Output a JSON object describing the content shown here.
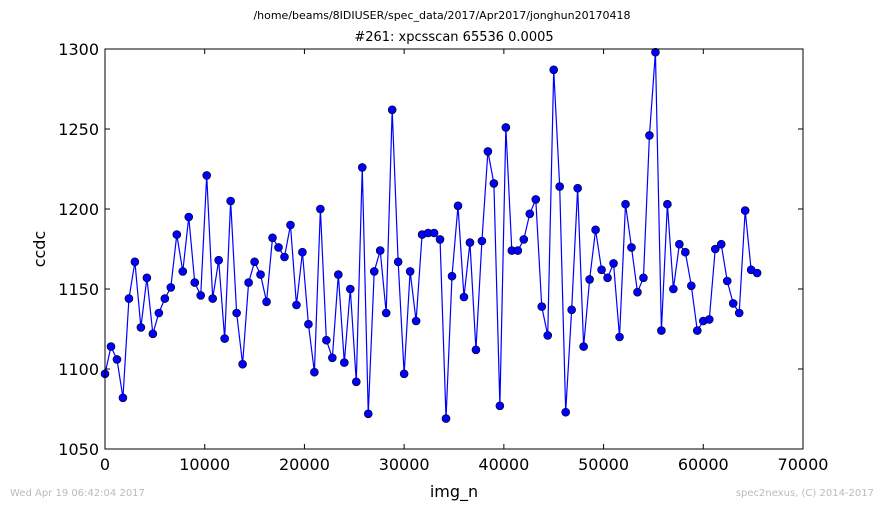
{
  "header": {
    "path": "/home/beams/8IDIUSER/spec_data/2017/Apr2017/jonghun20170418"
  },
  "footer": {
    "timestamp": "Wed Apr 19 06:42:04 2017",
    "credit": "spec2nexus, (C) 2014-2017"
  },
  "colors": {
    "line": "#0000ff",
    "marker": "#0000ff",
    "axes": "#000000"
  },
  "chart_data": {
    "type": "line",
    "title": "#261: xpcsscan 65536 0.0005",
    "xlabel": "img_n",
    "ylabel": "ccdc",
    "xlim": [
      0,
      70000
    ],
    "ylim": [
      1050,
      1300
    ],
    "xticks": [
      0,
      10000,
      20000,
      30000,
      40000,
      50000,
      60000,
      70000
    ],
    "xtick_labels": [
      "0",
      "10000",
      "20000",
      "30000",
      "40000",
      "50000",
      "60000",
      "70000"
    ],
    "yticks": [
      1050,
      1100,
      1150,
      1200,
      1250,
      1300
    ],
    "ytick_labels": [
      "1050",
      "1100",
      "1150",
      "1200",
      "1250",
      "1300"
    ],
    "grid": false,
    "legend": "none",
    "series": [
      {
        "x": [
          0,
          600,
          1200,
          1800,
          2400,
          3000,
          3600,
          4200,
          4800,
          5400,
          6000,
          6600,
          7200,
          7800,
          8400,
          9000,
          9600,
          10200,
          10800,
          11400,
          12000,
          12600,
          13200,
          13800,
          14400,
          15000,
          15600,
          16200,
          16800,
          17400,
          18000,
          18600,
          19200,
          19800,
          20400,
          21000,
          21600,
          22200,
          22800,
          23400,
          24000,
          24600,
          25200,
          25800,
          26400,
          27000,
          27600,
          28200,
          28800,
          29400,
          30000,
          30600,
          31200,
          31800,
          32400,
          33000,
          33600,
          34200,
          34800,
          35400,
          36000,
          36600,
          37200,
          37800,
          38400,
          39000,
          39600,
          40200,
          40800,
          41400,
          42000,
          42600,
          43200,
          43800,
          44400,
          45000,
          45600,
          46200,
          46800,
          47400,
          48000,
          48600,
          49200,
          49800,
          50400,
          51000,
          51600,
          52200,
          52800,
          53400,
          54000,
          54600,
          55200,
          55800,
          56400,
          57000,
          57600,
          58200,
          58800,
          59400,
          60000,
          60600,
          61200,
          61800,
          62400,
          63000,
          63600,
          64200,
          64800,
          65400
        ],
        "y": [
          1097,
          1114,
          1106,
          1082,
          1144,
          1167,
          1126,
          1157,
          1122,
          1135,
          1144,
          1151,
          1184,
          1161,
          1195,
          1154,
          1146,
          1221,
          1144,
          1168,
          1119,
          1205,
          1135,
          1103,
          1154,
          1167,
          1159,
          1142,
          1182,
          1176,
          1170,
          1190,
          1140,
          1173,
          1128,
          1098,
          1200,
          1118,
          1107,
          1159,
          1104,
          1150,
          1092,
          1226,
          1072,
          1161,
          1174,
          1135,
          1262,
          1167,
          1097,
          1161,
          1130,
          1184,
          1185,
          1185,
          1181,
          1069,
          1158,
          1202,
          1145,
          1179,
          1112,
          1180,
          1236,
          1216,
          1077,
          1251,
          1174,
          1174,
          1181,
          1197,
          1206,
          1139,
          1121,
          1287,
          1214,
          1073,
          1137,
          1213,
          1114,
          1156,
          1187,
          1162,
          1157,
          1166,
          1120,
          1203,
          1176,
          1148,
          1157,
          1246,
          1298,
          1124,
          1203,
          1150,
          1178,
          1173,
          1152,
          1124,
          1130,
          1131,
          1175,
          1178,
          1155,
          1141,
          1135,
          1199,
          1162,
          1160
        ]
      }
    ]
  }
}
